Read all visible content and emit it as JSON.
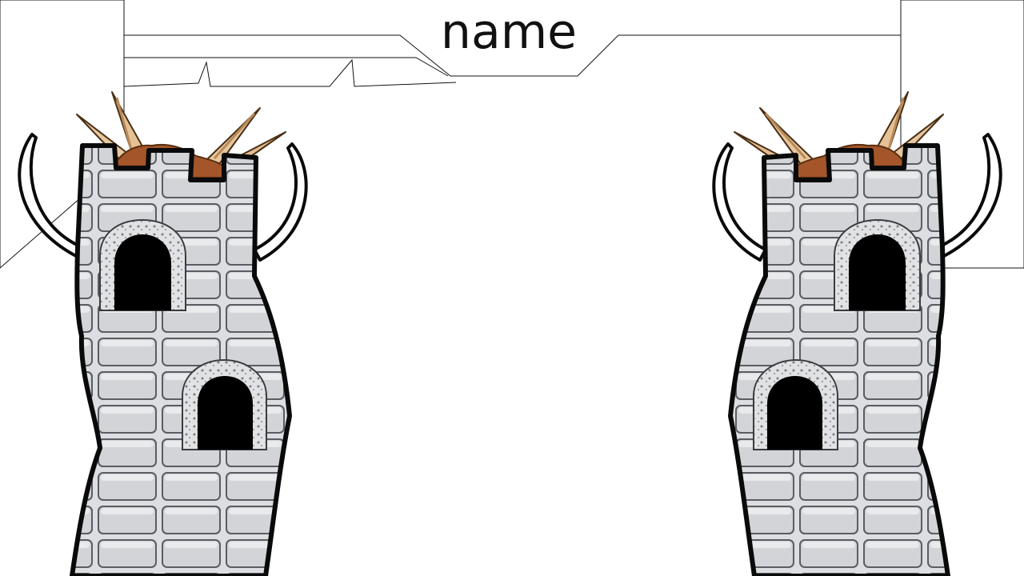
{
  "header": {
    "title": "name"
  },
  "icons": {
    "left_tower": "castle-tower-icon",
    "right_tower": "castle-tower-icon",
    "banner": "torn-banner-icon"
  },
  "colors": {
    "background": "#ffffff",
    "stone": "#d6d8dc",
    "stone_dark": "#a9acb1",
    "outline": "#0a0a0a",
    "spike_wood": "#e7c79f",
    "spike_shade": "#b98a58",
    "rubble": "#9a4f20",
    "window": "#000000"
  }
}
